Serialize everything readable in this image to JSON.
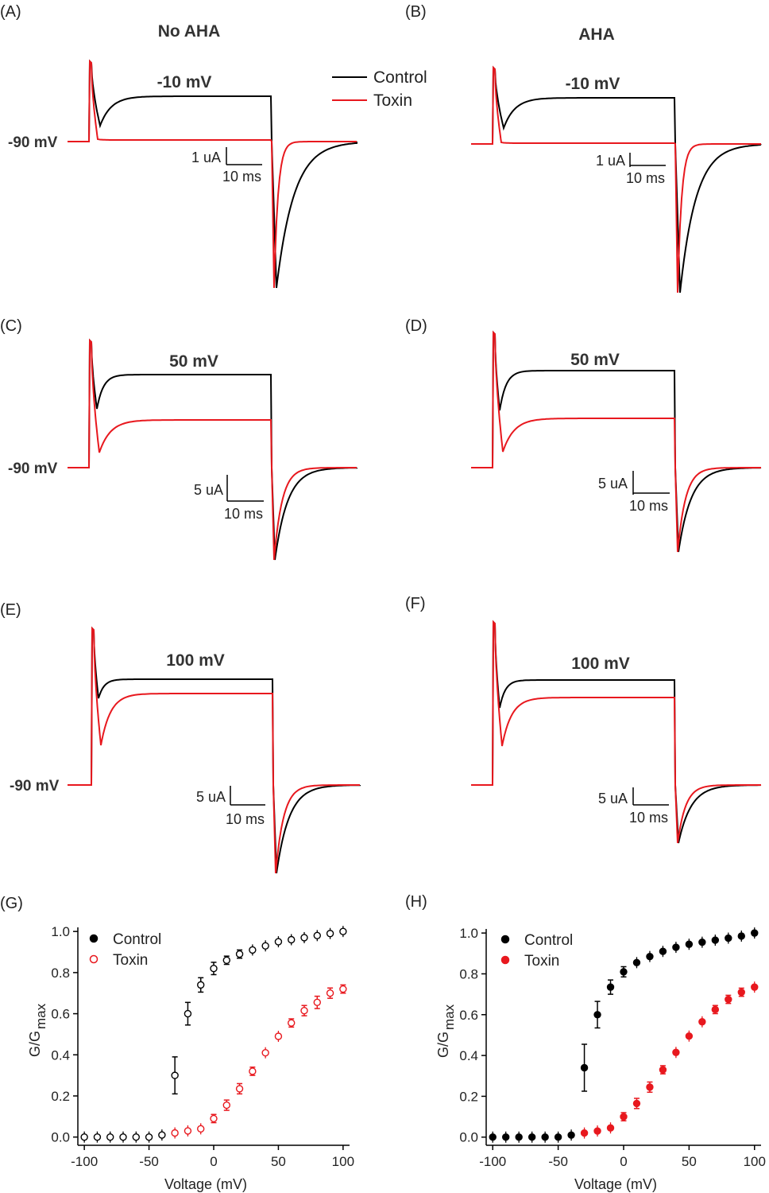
{
  "panels": {
    "A": {
      "letter": "(A)",
      "title": "No AHA",
      "voltage": "-10 mV",
      "hold": "-90 mV",
      "sb_y": "1 uA",
      "sb_x": "10 ms"
    },
    "B": {
      "letter": "(B)",
      "title": "AHA",
      "voltage": "-10 mV",
      "sb_y": "1 uA",
      "sb_x": "10 ms"
    },
    "C": {
      "letter": "(C)",
      "voltage": "50 mV",
      "hold": "-90 mV",
      "sb_y": "5 uA",
      "sb_x": "10 ms"
    },
    "D": {
      "letter": "(D)",
      "voltage": "50 mV",
      "sb_y": "5 uA",
      "sb_x": "10 ms"
    },
    "E": {
      "letter": "(E)",
      "voltage": "100 mV",
      "hold": "-90 mV",
      "sb_y": "5 uA",
      "sb_x": "10 ms"
    },
    "F": {
      "letter": "(F)",
      "voltage": "100 mV",
      "sb_y": "5 uA",
      "sb_x": "10 ms"
    },
    "G": {
      "letter": "(G)"
    },
    "H": {
      "letter": "(H)"
    }
  },
  "trace_legend": {
    "control": "Control",
    "toxin": "Toxin"
  },
  "colors": {
    "control": "#000000",
    "toxin": "#e8181e",
    "axis": "#000000"
  },
  "chart_data": [
    {
      "type": "scatter",
      "panel": "G",
      "marker": "open-circle",
      "xlabel": "Voltage (mV)",
      "ylabel": "G/G",
      "ylabel_sub": "max",
      "xlim": [
        -105,
        105
      ],
      "ylim": [
        -0.04,
        1.02
      ],
      "xticks": [
        -100,
        -50,
        0,
        50,
        100
      ],
      "yticks": [
        "0.0",
        "0.2",
        "0.4",
        "0.6",
        "0.8",
        "1.0"
      ],
      "legend_position": "top-left",
      "series": [
        {
          "name": "Control",
          "color": "#000000",
          "x": [
            -100,
            -90,
            -80,
            -70,
            -60,
            -50,
            -40,
            -30,
            -20,
            -10,
            0,
            10,
            20,
            30,
            40,
            50,
            60,
            70,
            80,
            90,
            100
          ],
          "y": [
            0.0,
            0.0,
            0.0,
            0.0,
            0.0,
            0.0,
            0.01,
            0.3,
            0.6,
            0.74,
            0.82,
            0.86,
            0.89,
            0.91,
            0.93,
            0.95,
            0.96,
            0.97,
            0.98,
            0.99,
            1.0
          ],
          "err": [
            0.005,
            0.005,
            0.005,
            0.005,
            0.005,
            0.005,
            0.01,
            0.09,
            0.055,
            0.035,
            0.03,
            0.02,
            0.02,
            0.015,
            0.012,
            0.01,
            0.01,
            0.01,
            0.01,
            0.008,
            0.008
          ]
        },
        {
          "name": "Toxin",
          "color": "#e8181e",
          "x": [
            -30,
            -20,
            -10,
            0,
            10,
            20,
            30,
            40,
            50,
            60,
            70,
            80,
            90,
            100
          ],
          "y": [
            0.02,
            0.03,
            0.04,
            0.09,
            0.155,
            0.235,
            0.32,
            0.41,
            0.49,
            0.555,
            0.615,
            0.655,
            0.7,
            0.72
          ],
          "err": [
            0.01,
            0.01,
            0.01,
            0.02,
            0.025,
            0.025,
            0.02,
            0.015,
            0.015,
            0.02,
            0.025,
            0.03,
            0.025,
            0.02
          ]
        }
      ]
    },
    {
      "type": "scatter",
      "panel": "H",
      "marker": "filled-circle",
      "xlabel": "Voltage (mV)",
      "ylabel": "G/G",
      "ylabel_sub": "max",
      "xlim": [
        -105,
        105
      ],
      "ylim": [
        -0.04,
        1.02
      ],
      "xticks": [
        -100,
        -50,
        0,
        50,
        100
      ],
      "yticks": [
        "0.0",
        "0.2",
        "0.4",
        "0.6",
        "0.8",
        "1.0"
      ],
      "legend_position": "top-left",
      "series": [
        {
          "name": "Control",
          "color": "#000000",
          "x": [
            -100,
            -90,
            -80,
            -70,
            -60,
            -50,
            -40,
            -30,
            -20,
            -10,
            0,
            10,
            20,
            30,
            40,
            50,
            60,
            70,
            80,
            90,
            100
          ],
          "y": [
            0.0,
            0.0,
            0.0,
            0.0,
            0.0,
            0.0,
            0.01,
            0.34,
            0.6,
            0.735,
            0.81,
            0.855,
            0.885,
            0.91,
            0.93,
            0.945,
            0.955,
            0.965,
            0.975,
            0.985,
            1.0
          ],
          "err": [
            0.005,
            0.005,
            0.005,
            0.005,
            0.005,
            0.005,
            0.01,
            0.115,
            0.065,
            0.035,
            0.025,
            0.015,
            0.012,
            0.01,
            0.01,
            0.01,
            0.008,
            0.008,
            0.008,
            0.008,
            0.008
          ]
        },
        {
          "name": "Toxin",
          "color": "#e8181e",
          "x": [
            -30,
            -20,
            -10,
            0,
            10,
            20,
            30,
            40,
            50,
            60,
            70,
            80,
            90,
            100
          ],
          "y": [
            0.02,
            0.03,
            0.045,
            0.1,
            0.165,
            0.245,
            0.33,
            0.415,
            0.495,
            0.565,
            0.625,
            0.675,
            0.71,
            0.735
          ],
          "err": [
            0.01,
            0.015,
            0.01,
            0.02,
            0.025,
            0.025,
            0.02,
            0.015,
            0.015,
            0.015,
            0.02,
            0.02,
            0.02,
            0.015
          ]
        }
      ]
    }
  ]
}
